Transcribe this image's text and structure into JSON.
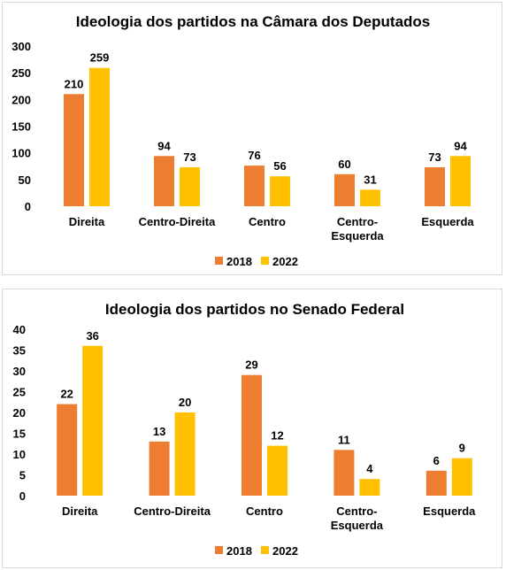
{
  "chart_data": [
    {
      "type": "bar",
      "title": "Ideologia dos partidos na Câmara dos Deputados",
      "categories": [
        [
          "Direita"
        ],
        [
          "Centro-Direita"
        ],
        [
          "Centro"
        ],
        [
          "Centro-",
          "Esquerda"
        ],
        [
          "Esquerda"
        ]
      ],
      "series": [
        {
          "name": "2018",
          "values": [
            210,
            94,
            76,
            60,
            73
          ],
          "color": "#ED7D31"
        },
        {
          "name": "2022",
          "values": [
            259,
            73,
            56,
            31,
            94
          ],
          "color": "#FFC000"
        }
      ],
      "ylim": [
        0,
        300
      ],
      "yticks": [
        0,
        50,
        100,
        150,
        200,
        250,
        300
      ],
      "xlabel": "",
      "ylabel": "",
      "legend": "bottom",
      "grid": false
    },
    {
      "type": "bar",
      "title": "Ideologia dos partidos no Senado Federal",
      "categories": [
        [
          "Direita"
        ],
        [
          "Centro-Direita"
        ],
        [
          "Centro"
        ],
        [
          "Centro-",
          "Esquerda"
        ],
        [
          "Esquerda"
        ]
      ],
      "series": [
        {
          "name": "2018",
          "values": [
            22,
            13,
            29,
            11,
            6
          ],
          "color": "#ED7D31"
        },
        {
          "name": "2022",
          "values": [
            36,
            20,
            12,
            4,
            9
          ],
          "color": "#FFC000"
        }
      ],
      "ylim": [
        0,
        40
      ],
      "yticks": [
        0,
        5,
        10,
        15,
        20,
        25,
        30,
        35,
        40
      ],
      "xlabel": "",
      "ylabel": "",
      "legend": "bottom",
      "grid": false
    }
  ]
}
